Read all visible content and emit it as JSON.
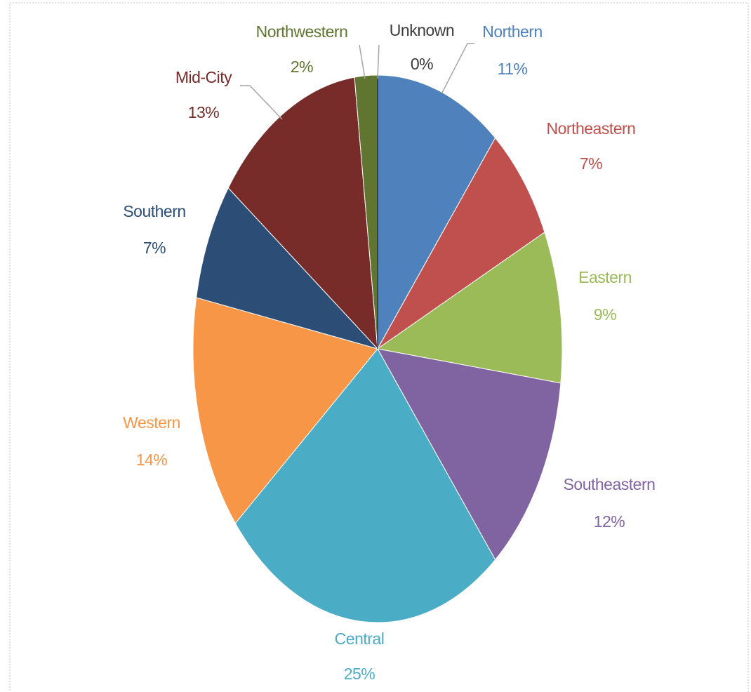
{
  "chart_data": {
    "type": "pie",
    "categories": [
      "Northern",
      "Northeastern",
      "Eastern",
      "Southeastern",
      "Central",
      "Western",
      "Southern",
      "Mid-City",
      "Northwestern",
      "Unknown"
    ],
    "values": [
      11,
      7,
      9,
      12,
      25,
      14,
      7,
      13,
      2,
      0
    ],
    "value_labels": [
      "11%",
      "7%",
      "9%",
      "12%",
      "25%",
      "14%",
      "7%",
      "13%",
      "2%",
      "0%"
    ],
    "colors": [
      "#4f81bd",
      "#c0504d",
      "#9bbb59",
      "#8064a2",
      "#4bacc6",
      "#f79646",
      "#2c4d75",
      "#772c2a",
      "#5f7530",
      "#1f3a5f"
    ]
  }
}
